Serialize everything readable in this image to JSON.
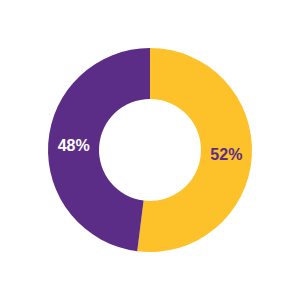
{
  "chart_data": {
    "type": "pie",
    "values": [
      52,
      48
    ],
    "value_labels": [
      "52%",
      "48%"
    ],
    "colors": [
      "#fdc12a",
      "#5c2d86"
    ],
    "data_labels": true
  }
}
